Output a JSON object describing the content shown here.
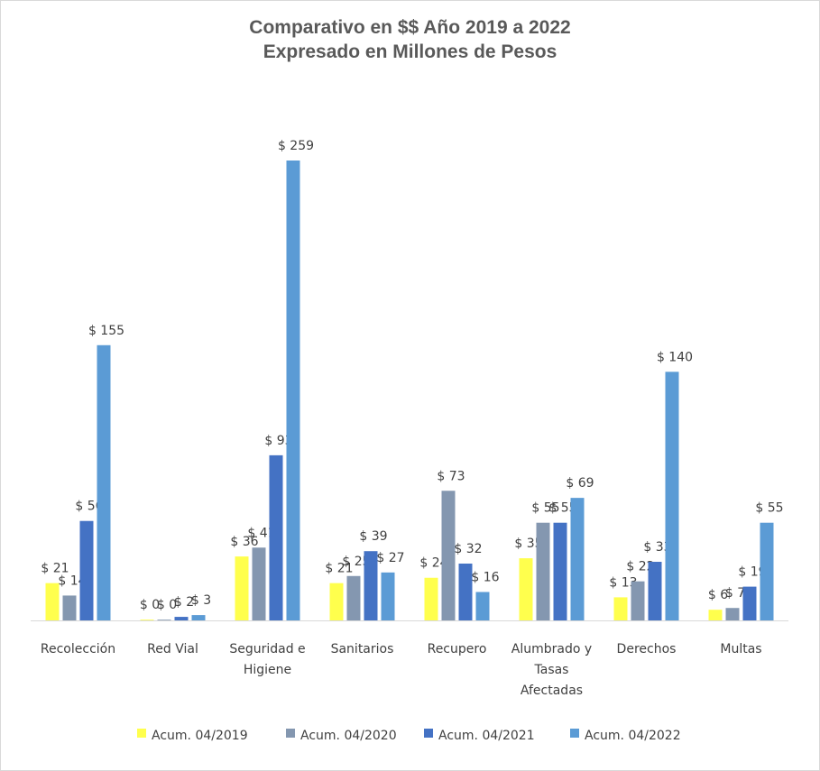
{
  "chart_data": {
    "type": "bar",
    "title_line1": "Comparativo en $$ Año 2019 a 2022",
    "title_line2": "Expresado en Millones de Pesos",
    "categories": [
      [
        "Recolección"
      ],
      [
        "Red Vial"
      ],
      [
        "Seguridad e",
        "Higiene"
      ],
      [
        "Sanitarios"
      ],
      [
        "Recupero"
      ],
      [
        "Alumbrado y",
        "Tasas",
        "Afectadas"
      ],
      [
        "Derechos"
      ],
      [
        "Multas"
      ]
    ],
    "series": [
      {
        "name": "Acum. 04/2019",
        "color": "#ffff4d",
        "values": [
          21,
          0,
          36,
          21,
          24,
          35,
          13,
          6
        ]
      },
      {
        "name": "Acum. 04/2020",
        "color": "#8497b0",
        "values": [
          14,
          0,
          41,
          25,
          73,
          55,
          22,
          7
        ]
      },
      {
        "name": "Acum. 04/2021",
        "color": "#4472c4",
        "values": [
          56,
          2,
          93,
          39,
          32,
          55,
          33,
          19
        ]
      },
      {
        "name": "Acum. 04/2022",
        "color": "#5b9bd5",
        "values": [
          155,
          3,
          259,
          27,
          16,
          69,
          140,
          55
        ]
      }
    ],
    "value_prefix": "$ ",
    "xlabel": "",
    "ylabel": "",
    "ylim": [
      0,
      259
    ],
    "grid": false,
    "legend": "bottom"
  }
}
